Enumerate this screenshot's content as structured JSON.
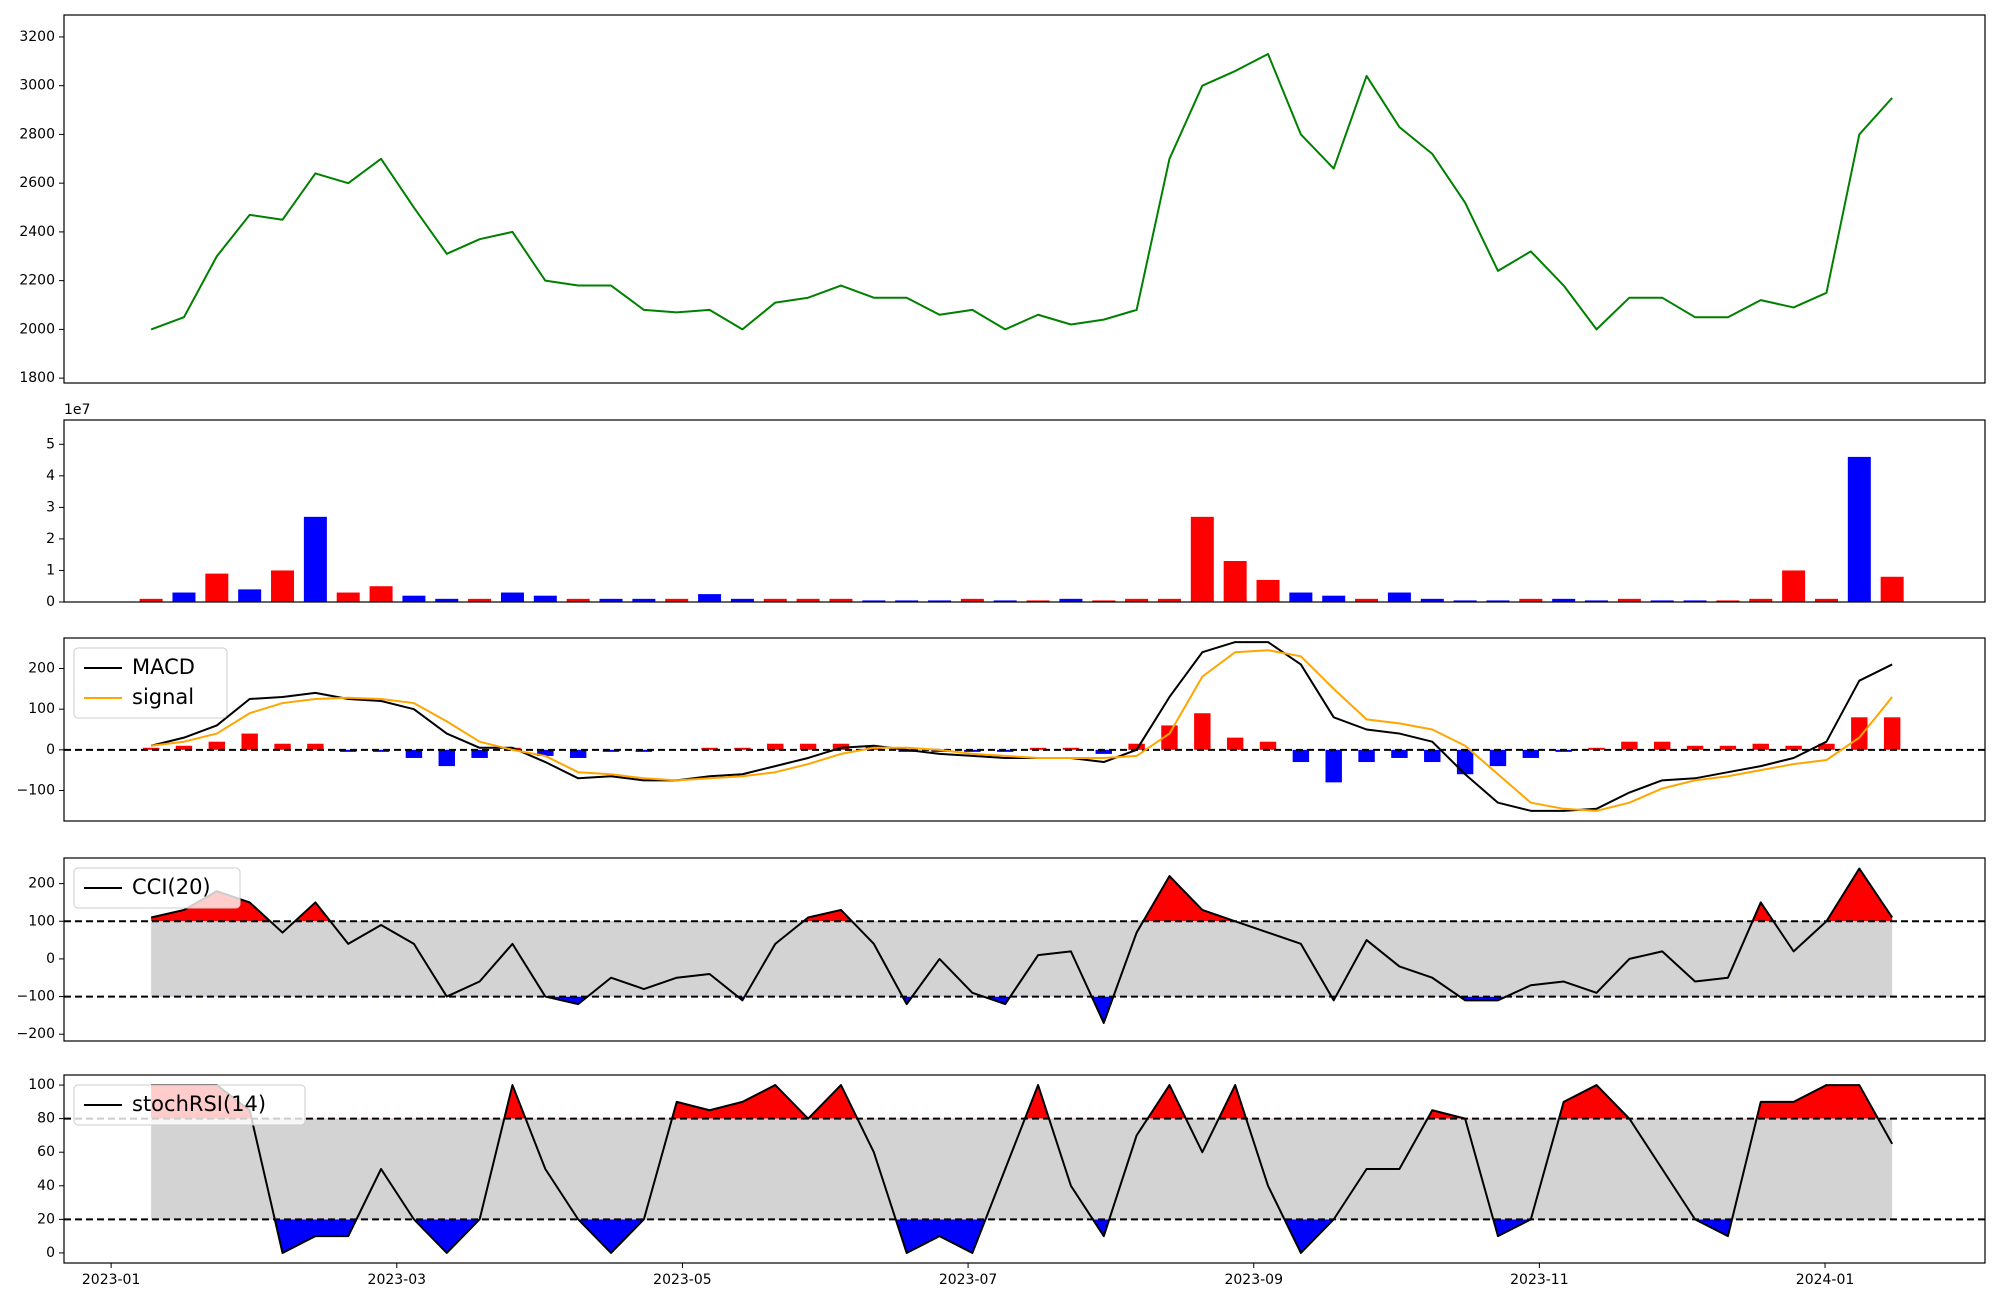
{
  "chart_data": [
    {
      "type": "line",
      "color": "#008000",
      "x": [
        0.28,
        0.51,
        0.74,
        0.97,
        1.2,
        1.43,
        1.66,
        1.89,
        2.12,
        2.35,
        2.58,
        2.81,
        3.04,
        3.27,
        3.5,
        3.73,
        3.96,
        4.19,
        4.42,
        4.65,
        4.88,
        5.11,
        5.34,
        5.57,
        5.8,
        6.03,
        6.26,
        6.49,
        6.72,
        6.95,
        7.18,
        7.41,
        7.64,
        7.87,
        8.1,
        8.33,
        8.56,
        8.79,
        9.02,
        9.25,
        9.48,
        9.71,
        9.94,
        10.17,
        10.4,
        10.63,
        10.86,
        11.09,
        11.32,
        11.55,
        11.78,
        12.01,
        12.24,
        12.47
      ],
      "values": [
        2000,
        2050,
        2300,
        2470,
        2450,
        2640,
        2600,
        2700,
        2500,
        2310,
        2370,
        2400,
        2200,
        2180,
        2180,
        2080,
        2070,
        2080,
        2000,
        2110,
        2130,
        2180,
        2130,
        2130,
        2060,
        2080,
        2000,
        2060,
        2020,
        2040,
        2080,
        2700,
        3000,
        3060,
        3130,
        2800,
        2660,
        3040,
        2830,
        2720,
        2520,
        2240,
        2320,
        2180,
        2000,
        2130,
        2130,
        2050,
        2050,
        2120,
        2090,
        2150,
        2800,
        2950
      ],
      "xlim": [
        -0.33,
        13.12
      ],
      "ylim": [
        1780,
        3290
      ],
      "yticks": [
        1800,
        2000,
        2200,
        2400,
        2600,
        2800,
        3000,
        3200
      ]
    },
    {
      "type": "bar",
      "offset_label": "1e7",
      "x": [
        0.28,
        0.51,
        0.74,
        0.97,
        1.2,
        1.43,
        1.66,
        1.89,
        2.12,
        2.35,
        2.58,
        2.81,
        3.04,
        3.27,
        3.5,
        3.73,
        3.96,
        4.19,
        4.42,
        4.65,
        4.88,
        5.11,
        5.34,
        5.57,
        5.8,
        6.03,
        6.26,
        6.49,
        6.72,
        6.95,
        7.18,
        7.41,
        7.64,
        7.87,
        8.1,
        8.33,
        8.56,
        8.79,
        9.02,
        9.25,
        9.48,
        9.71,
        9.94,
        10.17,
        10.4,
        10.63,
        10.86,
        11.09,
        11.32,
        11.55,
        11.78,
        12.01,
        12.24,
        12.47
      ],
      "values": [
        1000000,
        3000000,
        9000000,
        4000000,
        10000000,
        27000000,
        3000000,
        5000000,
        2000000,
        1000000,
        1000000,
        3000000,
        2000000,
        1000000,
        1000000,
        1000000,
        1000000,
        2500000,
        1000000,
        1000000,
        1000000,
        1000000,
        500000,
        500000,
        500000,
        1000000,
        500000,
        500000,
        1000000,
        500000,
        1000000,
        1000000,
        27000000,
        13000000,
        7000000,
        3000000,
        2000000,
        1000000,
        3000000,
        1000000,
        500000,
        500000,
        1000000,
        1000000,
        500000,
        1000000,
        500000,
        500000,
        500000,
        1000000,
        10000000,
        1000000,
        46000000,
        8000000
      ],
      "colors": [
        "red",
        "blue",
        "red",
        "blue",
        "red",
        "blue",
        "red",
        "red",
        "blue",
        "blue",
        "red",
        "blue",
        "blue",
        "red",
        "blue",
        "blue",
        "red",
        "blue",
        "blue",
        "red",
        "red",
        "red",
        "blue",
        "blue",
        "blue",
        "red",
        "blue",
        "red",
        "blue",
        "red",
        "red",
        "red",
        "red",
        "red",
        "red",
        "blue",
        "blue",
        "red",
        "blue",
        "blue",
        "blue",
        "blue",
        "red",
        "blue",
        "blue",
        "red",
        "blue",
        "blue",
        "red",
        "red",
        "red",
        "red",
        "blue",
        "red"
      ],
      "xlim": [
        -0.33,
        13.12
      ],
      "ylim": [
        0,
        57700000
      ],
      "yticks": [
        0,
        {
          "value": 10000000,
          "label": "1"
        },
        {
          "value": 20000000,
          "label": "2"
        },
        {
          "value": 30000000,
          "label": "3"
        },
        {
          "value": 40000000,
          "label": "4"
        },
        {
          "value": 50000000,
          "label": "5"
        }
      ]
    },
    {
      "type": "macd",
      "legend": "upper left",
      "baseline": 0,
      "x": [
        0.28,
        0.51,
        0.74,
        0.97,
        1.2,
        1.43,
        1.66,
        1.89,
        2.12,
        2.35,
        2.58,
        2.81,
        3.04,
        3.27,
        3.5,
        3.73,
        3.96,
        4.19,
        4.42,
        4.65,
        4.88,
        5.11,
        5.34,
        5.57,
        5.8,
        6.03,
        6.26,
        6.49,
        6.72,
        6.95,
        7.18,
        7.41,
        7.64,
        7.87,
        8.1,
        8.33,
        8.56,
        8.79,
        9.02,
        9.25,
        9.48,
        9.71,
        9.94,
        10.17,
        10.4,
        10.63,
        10.86,
        11.09,
        11.32,
        11.55,
        11.78,
        12.01,
        12.24,
        12.47
      ],
      "series": [
        {
          "name": "MACD",
          "color": "#000000",
          "values": [
            10,
            30,
            60,
            125,
            130,
            140,
            125,
            120,
            100,
            40,
            5,
            5,
            -30,
            -70,
            -65,
            -75,
            -75,
            -65,
            -60,
            -40,
            -20,
            5,
            10,
            0,
            -10,
            -15,
            -20,
            -20,
            -20,
            -30,
            0,
            130,
            240,
            265,
            265,
            210,
            80,
            50,
            40,
            20,
            -60,
            -130,
            -150,
            -150,
            -145,
            -105,
            -75,
            -70,
            -55,
            -40,
            -20,
            20,
            170,
            210
          ]
        },
        {
          "name": "signal",
          "color": "#ffa500",
          "values": [
            10,
            20,
            40,
            90,
            115,
            125,
            128,
            125,
            115,
            70,
            20,
            0,
            -15,
            -55,
            -60,
            -70,
            -75,
            -70,
            -65,
            -55,
            -35,
            -10,
            5,
            5,
            0,
            -10,
            -15,
            -20,
            -20,
            -20,
            -15,
            40,
            180,
            240,
            245,
            230,
            150,
            75,
            65,
            50,
            10,
            -60,
            -130,
            -145,
            -150,
            -130,
            -95,
            -75,
            -65,
            -50,
            -35,
            -25,
            30,
            130
          ]
        }
      ],
      "histogram": {
        "up_color": "#ff0000",
        "down_color": "#0000ff",
        "values": [
          5,
          10,
          20,
          40,
          15,
          15,
          -5,
          -5,
          -20,
          -40,
          -20,
          5,
          -15,
          -20,
          -5,
          -5,
          0,
          5,
          5,
          15,
          15,
          15,
          10,
          -5,
          -5,
          -5,
          -5,
          5,
          5,
          -10,
          15,
          60,
          90,
          30,
          20,
          -30,
          -80,
          -30,
          -20,
          -30,
          -60,
          -40,
          -20,
          -5,
          5,
          20,
          20,
          10,
          10,
          15,
          10,
          15,
          80,
          80
        ]
      },
      "xlim": [
        -0.33,
        13.12
      ],
      "ylim": [
        -175,
        275
      ],
      "yticks": [
        {
          "value": -100,
          "label": "−100"
        },
        0,
        100,
        200
      ]
    },
    {
      "type": "band",
      "legend": "upper left",
      "thresholds": [
        100,
        -100
      ],
      "upper_color": "#ff0000",
      "lower_color": "#0000ff",
      "band_color": "#d3d3d3",
      "x": [
        0.28,
        0.51,
        0.74,
        0.97,
        1.2,
        1.43,
        1.66,
        1.89,
        2.12,
        2.35,
        2.58,
        2.81,
        3.04,
        3.27,
        3.5,
        3.73,
        3.96,
        4.19,
        4.42,
        4.65,
        4.88,
        5.11,
        5.34,
        5.57,
        5.8,
        6.03,
        6.26,
        6.49,
        6.72,
        6.95,
        7.18,
        7.41,
        7.64,
        7.87,
        8.1,
        8.33,
        8.56,
        8.79,
        9.02,
        9.25,
        9.48,
        9.71,
        9.94,
        10.17,
        10.4,
        10.63,
        10.86,
        11.09,
        11.32,
        11.55,
        11.78,
        12.01,
        12.24,
        12.47
      ],
      "series": [
        {
          "name": "CCI(20)",
          "color": "#000000",
          "values": [
            110,
            130,
            180,
            150,
            70,
            150,
            40,
            90,
            40,
            -100,
            -60,
            40,
            -100,
            -120,
            -50,
            -80,
            -50,
            -40,
            -110,
            40,
            110,
            130,
            40,
            -120,
            0,
            -90,
            -120,
            10,
            20,
            -170,
            70,
            220,
            130,
            100,
            70,
            40,
            -110,
            50,
            -20,
            -50,
            -110,
            -110,
            -70,
            -60,
            -90,
            0,
            20,
            -60,
            -50,
            150,
            20,
            100,
            240,
            110
          ]
        }
      ],
      "xlim": [
        -0.33,
        13.12
      ],
      "ylim": [
        -218,
        268
      ],
      "yticks": [
        {
          "value": -200,
          "label": "−200"
        },
        {
          "value": -100,
          "label": "−100"
        },
        0,
        100,
        200
      ]
    },
    {
      "type": "band",
      "legend": "upper left",
      "thresholds": [
        80,
        20
      ],
      "upper_color": "#ff0000",
      "lower_color": "#0000ff",
      "band_color": "#d3d3d3",
      "x": [
        0.28,
        0.51,
        0.74,
        0.97,
        1.2,
        1.43,
        1.66,
        1.89,
        2.12,
        2.35,
        2.58,
        2.81,
        3.04,
        3.27,
        3.5,
        3.73,
        3.96,
        4.19,
        4.42,
        4.65,
        4.88,
        5.11,
        5.34,
        5.57,
        5.8,
        6.03,
        6.26,
        6.49,
        6.72,
        6.95,
        7.18,
        7.41,
        7.64,
        7.87,
        8.1,
        8.33,
        8.56,
        8.79,
        9.02,
        9.25,
        9.48,
        9.71,
        9.94,
        10.17,
        10.4,
        10.63,
        10.86,
        11.09,
        11.32,
        11.55,
        11.78,
        12.01,
        12.24,
        12.47
      ],
      "series": [
        {
          "name": "stochRSI(14)",
          "color": "#000000",
          "values": [
            100,
            100,
            100,
            85,
            0,
            10,
            10,
            50,
            20,
            0,
            20,
            100,
            50,
            20,
            0,
            20,
            90,
            85,
            90,
            100,
            80,
            100,
            60,
            0,
            10,
            0,
            50,
            100,
            40,
            10,
            70,
            100,
            60,
            100,
            40,
            0,
            20,
            50,
            50,
            85,
            80,
            10,
            20,
            90,
            100,
            80,
            50,
            20,
            10,
            90,
            90,
            100,
            100,
            65
          ]
        }
      ],
      "xlim": [
        -0.33,
        13.12
      ],
      "ylim": [
        -6,
        106
      ],
      "yticks": [
        0,
        20,
        40,
        60,
        80,
        100
      ],
      "xticks": [
        {
          "value": 0,
          "label": "2023-01"
        },
        {
          "value": 2,
          "label": "2023-03"
        },
        {
          "value": 4,
          "label": "2023-05"
        },
        {
          "value": 6,
          "label": "2023-07"
        },
        {
          "value": 8,
          "label": "2023-09"
        },
        {
          "value": 10,
          "label": "2023-11"
        },
        {
          "value": 12,
          "label": "2024-01"
        }
      ]
    }
  ]
}
